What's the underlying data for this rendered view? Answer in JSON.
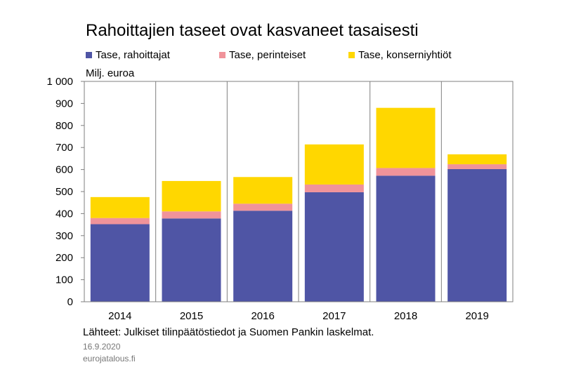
{
  "title": "Rahoittajien taseet ovat kasvaneet tasaisesti",
  "unit_label": "Milj. euroa",
  "source": "Lähteet: Julkiset tilinpäätöstiedot ja Suomen Pankin laskelmat.",
  "date": "16.9.2020",
  "site": "eurojatalous.fi",
  "colors": {
    "rahoittajat": "#4f55a5",
    "perinteiset": "#f0939a",
    "konserniyhtiot": "#ffd700",
    "grid": "#7f7f7f"
  },
  "legend": [
    {
      "label": "Tase, rahoittajat",
      "color": "#4f55a5"
    },
    {
      "label": "Tase, perinteiset",
      "color": "#f0939a"
    },
    {
      "label": "Tase, konserniyhtiöt",
      "color": "#ffd700"
    }
  ],
  "chart_data": {
    "type": "bar",
    "stacked": true,
    "title": "Rahoittajien taseet ovat kasvaneet tasaisesti",
    "ylabel": "Milj. euroa",
    "ylim": [
      0,
      1000
    ],
    "yticks": [
      0,
      100,
      200,
      300,
      400,
      500,
      600,
      700,
      800,
      900,
      1000
    ],
    "ytick_labels": [
      "0",
      "100",
      "200",
      "300",
      "400",
      "500",
      "600",
      "700",
      "800",
      "900",
      "1 000"
    ],
    "categories": [
      "2014",
      "2015",
      "2016",
      "2017",
      "2018",
      "2019"
    ],
    "grid": "vertical",
    "legend_position": "top",
    "series": [
      {
        "name": "Tase, rahoittajat",
        "color": "#4f55a5",
        "values": [
          352,
          378,
          413,
          497,
          572,
          602
        ]
      },
      {
        "name": "Tase, perinteiset",
        "color": "#f0939a",
        "values": [
          28,
          32,
          32,
          35,
          35,
          22
        ]
      },
      {
        "name": "Tase, konserniyhtiöt",
        "color": "#ffd700",
        "values": [
          95,
          138,
          121,
          182,
          273,
          45
        ]
      }
    ]
  }
}
